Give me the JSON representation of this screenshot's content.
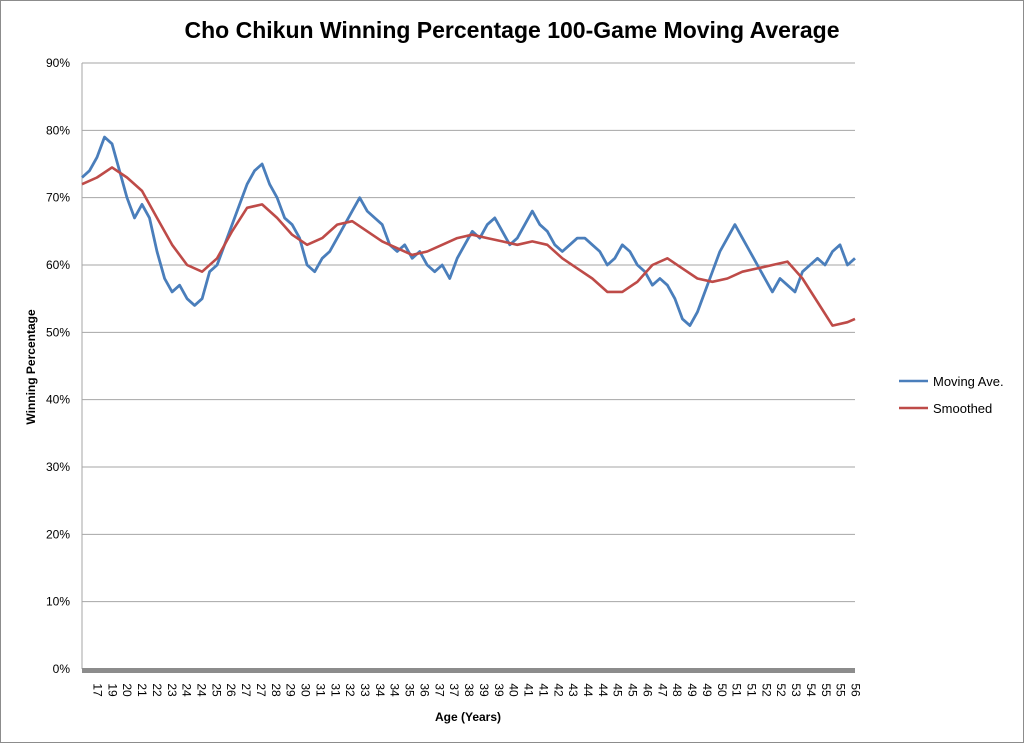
{
  "chart_data": {
    "type": "line",
    "title": "Cho Chikun Winning Percentage 100-Game Moving Average",
    "xlabel": "Age (Years)",
    "ylabel": "Winning Percentage",
    "ylim": [
      0,
      90
    ],
    "y_ticks": [
      "0%",
      "10%",
      "20%",
      "30%",
      "40%",
      "50%",
      "60%",
      "70%",
      "80%",
      "90%"
    ],
    "x_tick_labels": [
      "17",
      "19",
      "20",
      "21",
      "22",
      "23",
      "24",
      "24",
      "25",
      "26",
      "27",
      "27",
      "28",
      "29",
      "30",
      "31",
      "31",
      "32",
      "33",
      "34",
      "34",
      "35",
      "36",
      "37",
      "37",
      "38",
      "39",
      "39",
      "40",
      "41",
      "41",
      "42",
      "43",
      "44",
      "44",
      "45",
      "45",
      "46",
      "47",
      "48",
      "49",
      "49",
      "50",
      "51",
      "51",
      "52",
      "52",
      "53",
      "54",
      "55",
      "55",
      "56"
    ],
    "grid": "horizontal",
    "legend_position": "right",
    "series": [
      {
        "name": "Moving Ave.",
        "color": "#4a7ebb",
        "x": [
          0,
          0.5,
          1,
          1.5,
          2,
          2.5,
          3,
          3.5,
          4,
          4.5,
          5,
          5.5,
          6,
          6.5,
          7,
          7.5,
          8,
          8.5,
          9,
          9.5,
          10,
          10.5,
          11,
          11.5,
          12,
          12.5,
          13,
          13.5,
          14,
          14.5,
          15,
          15.5,
          16,
          16.5,
          17,
          17.5,
          18,
          18.5,
          19,
          19.5,
          20,
          20.5,
          21,
          21.5,
          22,
          22.5,
          23,
          23.5,
          24,
          24.5,
          25,
          25.5,
          26,
          26.5,
          27,
          27.5,
          28,
          28.5,
          29,
          29.5,
          30,
          30.5,
          31,
          31.5,
          32,
          32.5,
          33,
          33.5,
          34,
          34.5,
          35,
          35.5,
          36,
          36.5,
          37,
          37.5,
          38,
          38.5,
          39,
          39.5,
          40,
          40.5,
          41,
          41.5,
          42,
          42.5,
          43,
          43.5,
          44,
          44.5,
          45,
          45.5,
          46,
          46.5,
          47,
          47.5,
          48,
          48.5,
          49,
          49.5,
          50,
          50.5,
          51,
          51.5
        ],
        "y": [
          73,
          74,
          76,
          79,
          78,
          74,
          70,
          67,
          69,
          67,
          62,
          58,
          56,
          57,
          55,
          54,
          55,
          59,
          60,
          63,
          66,
          69,
          72,
          74,
          75,
          72,
          70,
          67,
          66,
          64,
          60,
          59,
          61,
          62,
          64,
          66,
          68,
          70,
          68,
          67,
          66,
          63,
          62,
          63,
          61,
          62,
          60,
          59,
          60,
          58,
          61,
          63,
          65,
          64,
          66,
          67,
          65,
          63,
          64,
          66,
          68,
          66,
          65,
          63,
          62,
          63,
          64,
          64,
          63,
          62,
          60,
          61,
          63,
          62,
          60,
          59,
          57,
          58,
          57,
          55,
          52,
          51,
          53,
          56,
          59,
          62,
          64,
          66,
          64,
          62,
          60,
          58,
          56,
          58,
          57,
          56,
          59,
          60,
          61,
          60,
          62,
          63,
          60,
          61
        ]
      },
      {
        "name": "Smoothed",
        "color": "#be4b48",
        "x": [
          0,
          1,
          2,
          3,
          4,
          5,
          6,
          7,
          8,
          9,
          10,
          11,
          12,
          13,
          14,
          15,
          16,
          17,
          18,
          19,
          20,
          21,
          22,
          23,
          24,
          25,
          26,
          27,
          28,
          29,
          30,
          31,
          32,
          33,
          34,
          35,
          36,
          37,
          38,
          39,
          40,
          41,
          42,
          43,
          44,
          45,
          46,
          47,
          48,
          49,
          50,
          51,
          51.5
        ],
        "y": [
          72,
          73,
          74.5,
          73,
          71,
          67,
          63,
          60,
          59,
          61,
          65,
          68.5,
          69,
          67,
          64.5,
          63,
          64,
          66,
          66.5,
          65,
          63.5,
          62.5,
          61.5,
          62,
          63,
          64,
          64.5,
          64,
          63.5,
          63,
          63.5,
          63,
          61,
          59.5,
          58,
          56,
          56,
          57.5,
          60,
          61,
          59.5,
          58,
          57.5,
          58,
          59,
          59.5,
          60,
          60.5,
          58,
          54.5,
          51,
          51.5,
          52
        ]
      }
    ]
  }
}
